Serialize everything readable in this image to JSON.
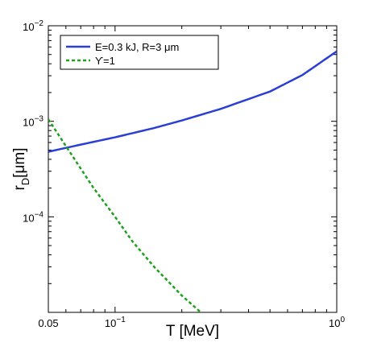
{
  "chart_data": {
    "type": "line",
    "xlabel": "T [MeV]",
    "ylabel_main": "r",
    "ylabel_sub": "D",
    "ylabel_unit": "[μm]",
    "x_scale": "log",
    "y_scale": "log",
    "xlim": [
      0.05,
      1.0
    ],
    "ylim": [
      1e-05,
      0.01
    ],
    "x_ticks": [
      {
        "value": 0.05,
        "base": "0.05",
        "exp": ""
      },
      {
        "value": 0.1,
        "base": "10",
        "exp": "−1"
      },
      {
        "value": 1.0,
        "base": "10",
        "exp": "0"
      }
    ],
    "y_ticks": [
      {
        "value": 0.0001,
        "base": "10",
        "exp": "−4"
      },
      {
        "value": 0.001,
        "base": "10",
        "exp": "−3"
      },
      {
        "value": 0.01,
        "base": "10",
        "exp": "−2"
      }
    ],
    "grid": false,
    "legend_position": "top-left",
    "series": [
      {
        "name": "E=0.3 kJ, R=3 μm",
        "color": "#2b3fd6",
        "style": "solid",
        "x": [
          0.05,
          0.07,
          0.1,
          0.15,
          0.2,
          0.3,
          0.5,
          0.7,
          1.0
        ],
        "y": [
          0.00048,
          0.00057,
          0.00068,
          0.00085,
          0.00102,
          0.00135,
          0.00205,
          0.00305,
          0.0054
        ]
      },
      {
        "name": "ϒ=1",
        "color": "#1fa01f",
        "style": "dashed",
        "x": [
          0.05,
          0.06,
          0.07,
          0.08,
          0.1,
          0.12,
          0.15,
          0.2,
          0.25,
          0.3
        ],
        "y": [
          0.00105,
          0.00055,
          0.00032,
          0.0002,
          0.0001,
          5.5e-05,
          3e-05,
          1.5e-05,
          9.5e-06,
          7.5e-06
        ]
      }
    ]
  }
}
